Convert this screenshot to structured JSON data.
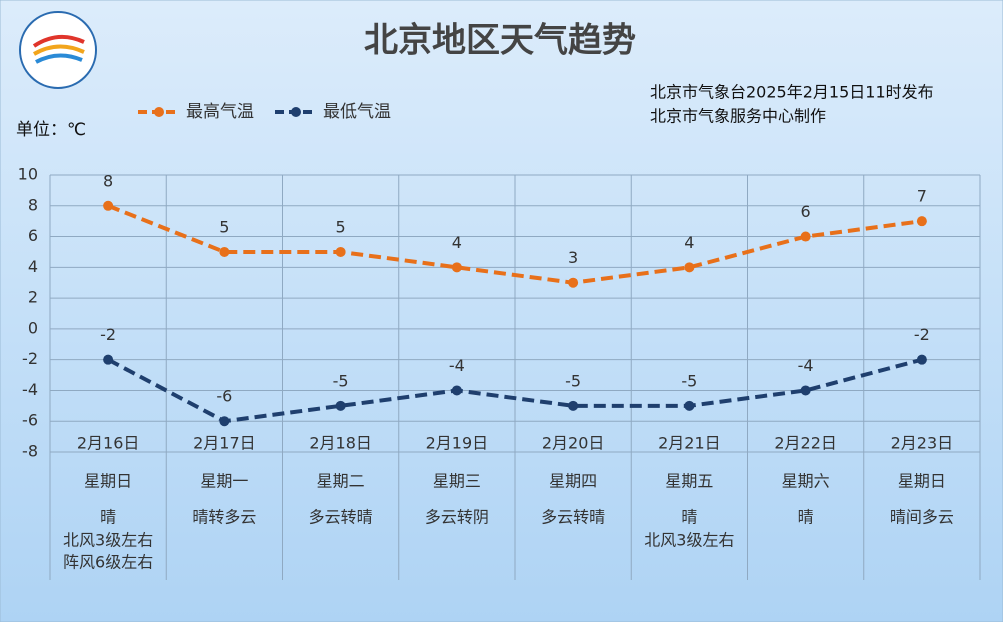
{
  "chart_data": {
    "type": "line",
    "title": "北京地区天气趋势",
    "issuer": [
      "北京市气象台2025年2月15日11时发布",
      "北京市气象服务中心制作"
    ],
    "unit_label": "单位：℃",
    "categories": [
      "2月16日",
      "2月17日",
      "2月18日",
      "2月19日",
      "2月20日",
      "2月21日",
      "2月22日",
      "2月23日"
    ],
    "weekdays": [
      "星期日",
      "星期一",
      "星期二",
      "星期三",
      "星期四",
      "星期五",
      "星期六",
      "星期日"
    ],
    "weather": [
      "晴",
      "晴转多云",
      "多云转晴",
      "多云转阴",
      "多云转晴",
      "晴",
      "晴",
      "晴间多云"
    ],
    "wind": [
      [
        "北风3级左右",
        "阵风6级左右"
      ],
      null,
      null,
      null,
      null,
      [
        "北风3级左右"
      ],
      null,
      null
    ],
    "series": [
      {
        "name": "最高气温",
        "color": "#e8701a",
        "values": [
          8,
          5,
          5,
          4,
          3,
          4,
          6,
          7
        ]
      },
      {
        "name": "最低气温",
        "color": "#1f3f6e",
        "values": [
          -2,
          -6,
          -5,
          -4,
          -5,
          -5,
          -4,
          -2
        ]
      }
    ],
    "ylim": [
      -8,
      10
    ],
    "yticks": [
      -8,
      -6,
      -4,
      -2,
      0,
      2,
      4,
      6,
      8,
      10
    ],
    "grid": true
  }
}
